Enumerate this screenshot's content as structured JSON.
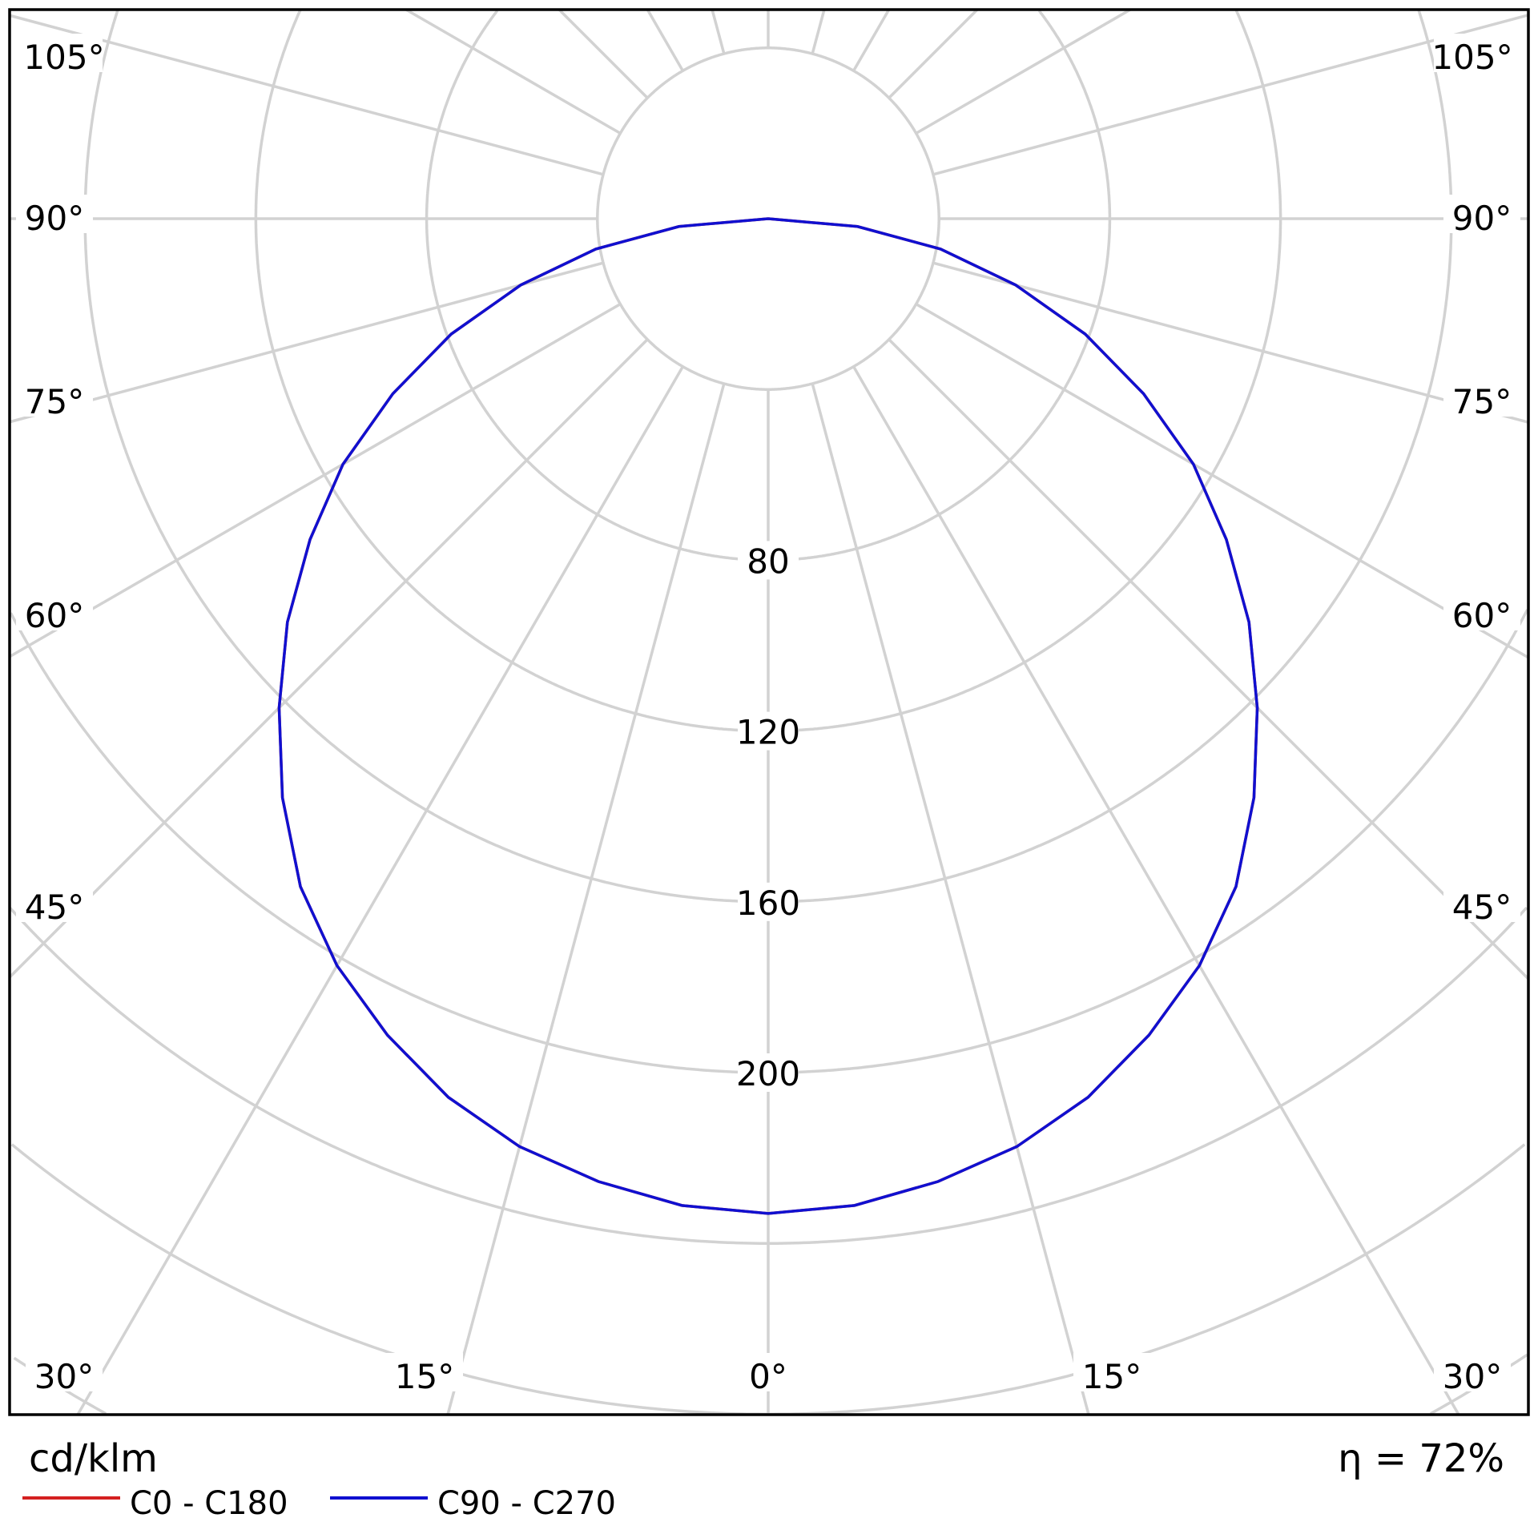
{
  "chart_data": {
    "type": "polar",
    "unit_label": "cd/klm",
    "efficiency_label": "η = 72%",
    "radial_ticks": [
      80,
      120,
      160,
      200
    ],
    "radial_rings": [
      40,
      80,
      120,
      160,
      200,
      240,
      280,
      320,
      360,
      400,
      440
    ],
    "angle_labels_left": [
      "105°",
      "90°",
      "75°",
      "60°",
      "45°",
      "30°",
      "15°"
    ],
    "angle_labels_right": [
      "105°",
      "90°",
      "75°",
      "60°",
      "45°",
      "30°",
      "15°"
    ],
    "angle_label_center": "0°",
    "grid": true,
    "legend_position": "bottom-left",
    "angles": [
      0,
      5,
      10,
      15,
      20,
      25,
      30,
      35,
      40,
      45,
      50,
      55,
      60,
      65,
      70,
      75,
      80,
      85,
      90
    ],
    "series": [
      {
        "name": "C0 - C180",
        "color": "#d42020",
        "values": [
          233,
          232,
          229,
          225,
          219,
          211,
          202,
          191,
          177,
          162,
          147,
          131,
          115,
          97,
          79,
          60,
          41,
          21,
          0
        ]
      },
      {
        "name": "C90 - C270",
        "color": "#1010d0",
        "values": [
          233,
          232,
          229,
          225,
          219,
          211,
          202,
          191,
          177,
          162,
          147,
          131,
          115,
          97,
          79,
          60,
          41,
          21,
          0
        ]
      }
    ]
  }
}
